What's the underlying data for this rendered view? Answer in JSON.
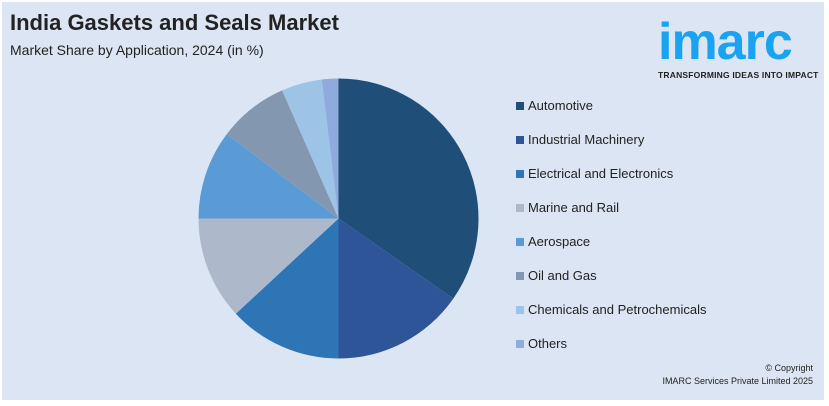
{
  "header": {
    "title": "India Gaskets and Seals Market",
    "subtitle": "Market Share by Application, 2024 (in %)"
  },
  "logo": {
    "word": "imarc",
    "tagline": "TRANSFORMING IDEAS INTO IMPACT",
    "color": "#1aa3f0"
  },
  "footer": {
    "line1": "© Copyright",
    "line2": "IMARC Services Private Limited 2025"
  },
  "chart_data": {
    "type": "pie",
    "title": "India Gaskets and Seals Market",
    "subtitle": "Market Share by Application, 2024 (in %)",
    "legend_position": "right",
    "start": "top, clockwise",
    "slices": [
      {
        "label": "Automotive",
        "value": 34.7,
        "color": "#1f4e79"
      },
      {
        "label": "Industrial Machinery",
        "value": 15.3,
        "color": "#2e5597"
      },
      {
        "label": "Electrical and Electronics",
        "value": 13.1,
        "color": "#2e75b6"
      },
      {
        "label": "Marine and Rail",
        "value": 11.9,
        "color": "#adb9ca"
      },
      {
        "label": "Aerospace",
        "value": 10.3,
        "color": "#5b9bd5"
      },
      {
        "label": "Oil and Gas",
        "value": 8.1,
        "color": "#8497b0"
      },
      {
        "label": "Chemicals and Petrochemicals",
        "value": 4.7,
        "color": "#9dc3e6"
      },
      {
        "label": "Others",
        "value": 1.9,
        "color": "#8faadc"
      }
    ]
  }
}
